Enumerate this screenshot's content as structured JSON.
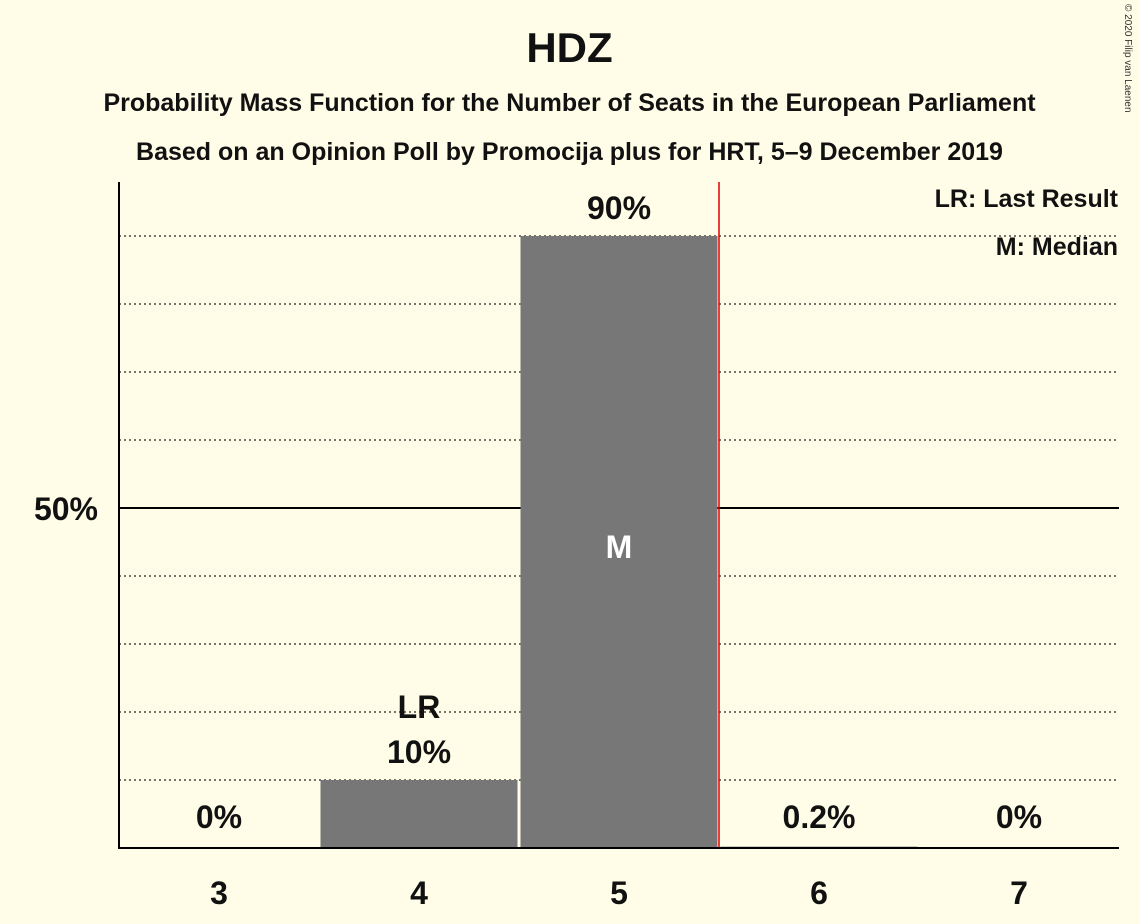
{
  "chart_data": {
    "type": "bar",
    "title": "HDZ",
    "subtitle": "Probability Mass Function for the Number of Seats in the European Parliament",
    "subtitle2": "Based on an Opinion Poll by Promocija plus for HRT, 5–9 December 2019",
    "copyright": "© 2020 Filip van Laenen",
    "categories": [
      "3",
      "4",
      "5",
      "6",
      "7"
    ],
    "values": [
      0,
      10,
      90,
      0.2,
      0
    ],
    "value_labels": [
      "0%",
      "10%",
      "90%",
      "0.2%",
      "0%"
    ],
    "ylim": [
      0,
      100
    ],
    "y_tick_label": "50%",
    "y_tick_value": 50,
    "gridlines": [
      10,
      20,
      30,
      40,
      60,
      70,
      80,
      90
    ],
    "last_result": {
      "category": "4",
      "label": "LR"
    },
    "median": {
      "category": "5",
      "label": "M"
    },
    "majority_line_after": "5",
    "legend": [
      "LR: Last Result",
      "M: Median"
    ],
    "legend_position": "top-right",
    "colors": {
      "bar": "#777777",
      "background": "#FFFDE7",
      "majority_line": "#E00000",
      "axis": "#000000"
    }
  }
}
